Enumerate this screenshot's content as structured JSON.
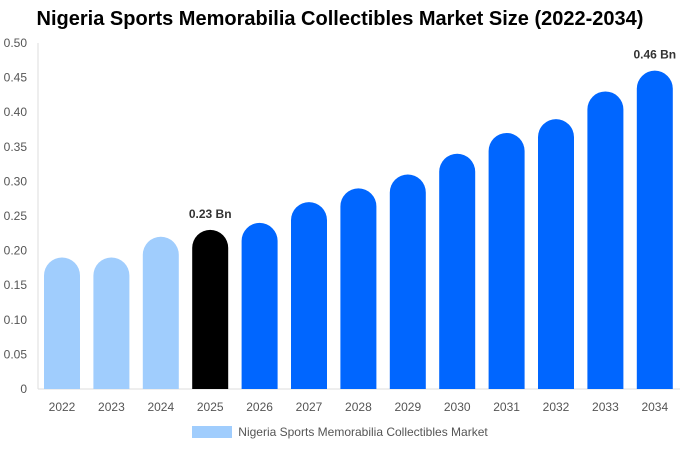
{
  "chart_data": {
    "type": "bar",
    "title": "Nigeria Sports Memorabilia Collectibles Market Size (2022-2034)",
    "categories": [
      "2022",
      "2023",
      "2024",
      "2025",
      "2026",
      "2027",
      "2028",
      "2029",
      "2030",
      "2031",
      "2032",
      "2033",
      "2034"
    ],
    "series": [
      {
        "name": "Nigeria Sports Memorabilia Collectibles Market",
        "values": [
          0.19,
          0.19,
          0.22,
          0.23,
          0.24,
          0.27,
          0.29,
          0.31,
          0.34,
          0.37,
          0.39,
          0.43,
          0.46
        ]
      }
    ],
    "data_labels": {
      "2025": "0.23 Bn",
      "2034": "0.46 Bn"
    },
    "ylim": [
      0,
      0.5
    ],
    "yticks": [
      "0",
      "0.05",
      "0.10",
      "0.15",
      "0.20",
      "0.25",
      "0.30",
      "0.35",
      "0.40",
      "0.45",
      "0.50"
    ],
    "xlabel": "",
    "ylabel": "",
    "grid": false,
    "legend": "bottom",
    "colors": {
      "historical": "#a0cdfd",
      "current": "#000000",
      "forecast": "#0066ff"
    }
  }
}
